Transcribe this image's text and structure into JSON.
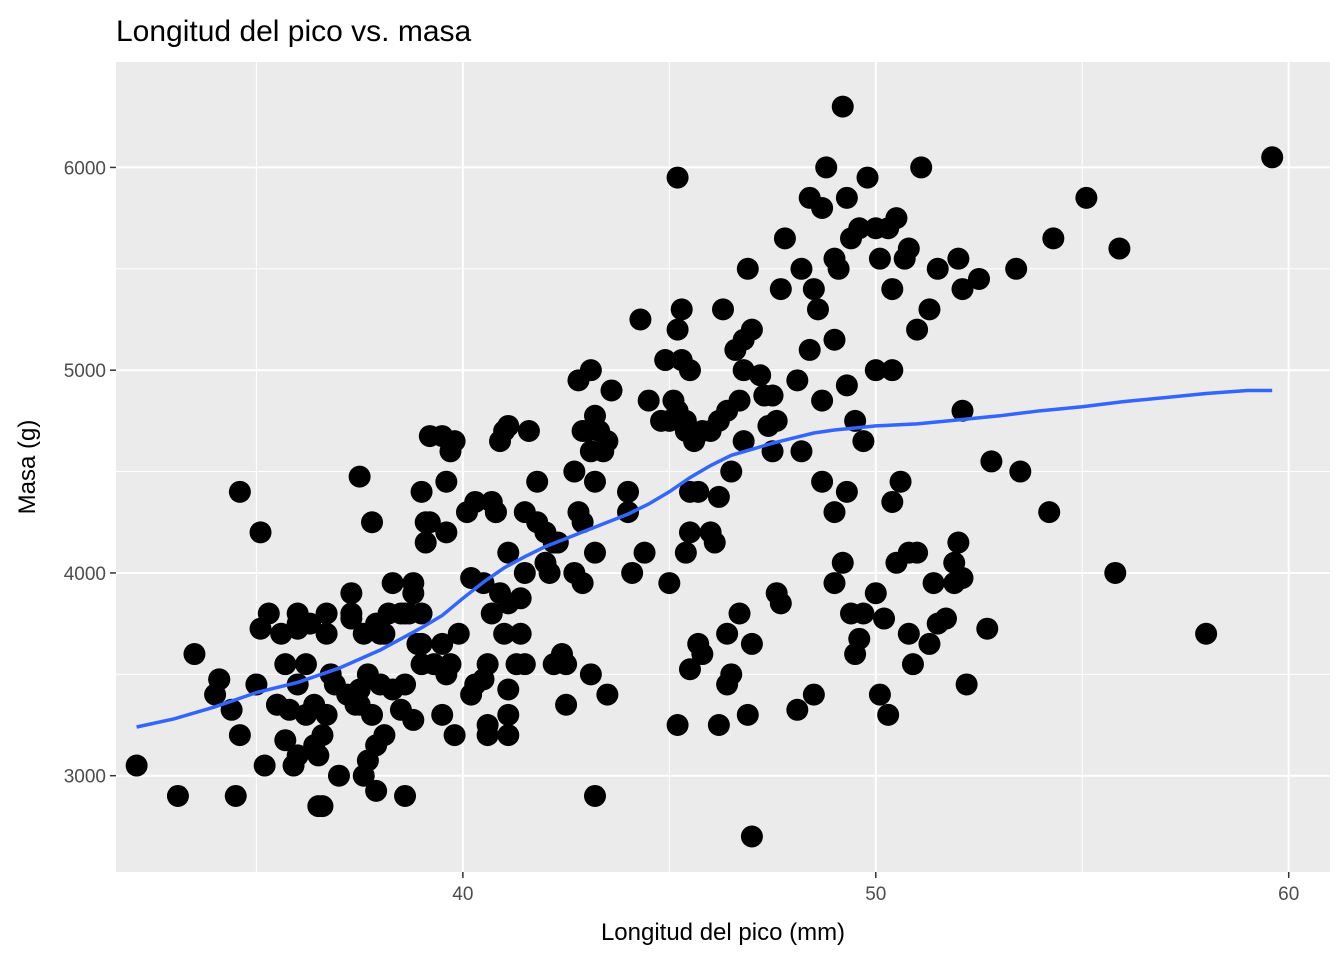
{
  "chart_data": {
    "type": "scatter",
    "title": "Longitud del pico vs. masa",
    "xlabel": "Longitud del pico (mm)",
    "ylabel": "Masa (g)",
    "xlim": [
      31.6,
      61.0
    ],
    "ylim": [
      2525,
      6520
    ],
    "x_ticks": [
      40,
      50,
      60
    ],
    "y_ticks": [
      3000,
      4000,
      5000,
      6000
    ],
    "x_minor": [
      35,
      45,
      55
    ],
    "y_minor": [
      3500,
      4500,
      5500
    ],
    "grid": true,
    "colors": {
      "panel": "#EBEBEB",
      "grid": "#FFFFFF",
      "point": "#000000",
      "smooth": "#3366FF",
      "tick": "#4D4D4D"
    },
    "points": [
      [
        32.1,
        3050
      ],
      [
        33.1,
        2900
      ],
      [
        33.5,
        3600
      ],
      [
        34.0,
        3400
      ],
      [
        34.1,
        3475
      ],
      [
        34.4,
        3325
      ],
      [
        34.5,
        2900
      ],
      [
        34.6,
        3200
      ],
      [
        34.6,
        4400
      ],
      [
        35.0,
        3450
      ],
      [
        35.1,
        3725
      ],
      [
        35.1,
        4200
      ],
      [
        35.2,
        3050
      ],
      [
        35.3,
        3800
      ],
      [
        35.5,
        3350
      ],
      [
        35.6,
        3700
      ],
      [
        35.7,
        3175
      ],
      [
        35.7,
        3550
      ],
      [
        35.8,
        3325
      ],
      [
        35.9,
        3050
      ],
      [
        36.0,
        3100
      ],
      [
        36.0,
        3725
      ],
      [
        36.0,
        3800
      ],
      [
        36.0,
        3450
      ],
      [
        36.2,
        3550
      ],
      [
        36.2,
        3300
      ],
      [
        36.3,
        3750
      ],
      [
        36.4,
        3150
      ],
      [
        36.4,
        3350
      ],
      [
        36.5,
        2850
      ],
      [
        36.6,
        2850
      ],
      [
        36.6,
        3200
      ],
      [
        36.7,
        3700
      ],
      [
        36.7,
        3800
      ],
      [
        36.8,
        3500
      ],
      [
        36.9,
        3450
      ],
      [
        37.0,
        3000
      ],
      [
        37.2,
        3400
      ],
      [
        37.3,
        3900
      ],
      [
        37.3,
        3775
      ],
      [
        37.5,
        3350
      ],
      [
        37.5,
        4475
      ],
      [
        37.6,
        3000
      ],
      [
        37.6,
        3700
      ],
      [
        37.7,
        3075
      ],
      [
        37.7,
        3500
      ],
      [
        37.8,
        3300
      ],
      [
        37.8,
        4250
      ],
      [
        37.9,
        3150
      ],
      [
        37.9,
        2925
      ],
      [
        38.0,
        3700
      ],
      [
        38.0,
        3450
      ],
      [
        38.1,
        3200
      ],
      [
        38.1,
        3700
      ],
      [
        38.2,
        3800
      ],
      [
        38.3,
        3950
      ],
      [
        38.3,
        3425
      ],
      [
        38.5,
        3325
      ],
      [
        38.6,
        3800
      ],
      [
        38.6,
        2900
      ],
      [
        38.6,
        3450
      ],
      [
        38.7,
        3800
      ],
      [
        38.8,
        3275
      ],
      [
        38.8,
        3950
      ],
      [
        39.0,
        3800
      ],
      [
        39.0,
        3550
      ],
      [
        39.0,
        3650
      ],
      [
        39.1,
        4150
      ],
      [
        39.1,
        4250
      ],
      [
        39.2,
        4675
      ],
      [
        39.3,
        3550
      ],
      [
        39.5,
        3300
      ],
      [
        39.5,
        3650
      ],
      [
        39.6,
        3500
      ],
      [
        39.6,
        4450
      ],
      [
        39.7,
        3550
      ],
      [
        39.7,
        4600
      ],
      [
        39.8,
        4650
      ],
      [
        39.8,
        3200
      ],
      [
        39.9,
        3700
      ],
      [
        40.1,
        4300
      ],
      [
        40.2,
        3975
      ],
      [
        40.2,
        3400
      ],
      [
        40.3,
        3450
      ],
      [
        40.3,
        4350
      ],
      [
        40.5,
        3475
      ],
      [
        40.6,
        3200
      ],
      [
        40.6,
        3550
      ],
      [
        40.7,
        3800
      ],
      [
        40.8,
        4300
      ],
      [
        40.9,
        3900
      ],
      [
        40.9,
        4650
      ],
      [
        41.0,
        3700
      ],
      [
        41.1,
        3200
      ],
      [
        41.1,
        3300
      ],
      [
        41.1,
        4100
      ],
      [
        41.1,
        3425
      ],
      [
        41.1,
        4725
      ],
      [
        41.3,
        3550
      ],
      [
        41.4,
        3700
      ],
      [
        41.4,
        3875
      ],
      [
        41.5,
        4000
      ],
      [
        41.6,
        4700
      ],
      [
        41.8,
        4450
      ],
      [
        42.0,
        4050
      ],
      [
        42.1,
        4000
      ],
      [
        42.2,
        3550
      ],
      [
        42.3,
        4150
      ],
      [
        42.5,
        3350
      ],
      [
        42.5,
        3550
      ],
      [
        42.7,
        4500
      ],
      [
        42.8,
        4950
      ],
      [
        42.9,
        4700
      ],
      [
        42.9,
        4250
      ],
      [
        43.1,
        5000
      ],
      [
        43.2,
        4775
      ],
      [
        43.2,
        4450
      ],
      [
        43.3,
        4700
      ],
      [
        43.4,
        4600
      ],
      [
        43.5,
        4650
      ],
      [
        43.5,
        3400
      ],
      [
        43.6,
        4900
      ],
      [
        44.0,
        4300
      ],
      [
        44.1,
        4000
      ],
      [
        44.4,
        4100
      ],
      [
        44.5,
        4850
      ],
      [
        44.9,
        5050
      ],
      [
        45.0,
        4750
      ],
      [
        45.2,
        4800
      ],
      [
        45.3,
        5050
      ],
      [
        45.4,
        4700
      ],
      [
        45.4,
        4750
      ],
      [
        45.5,
        5000
      ],
      [
        45.6,
        4650
      ],
      [
        45.7,
        4400
      ],
      [
        45.8,
        4700
      ],
      [
        46.1,
        4150
      ],
      [
        46.2,
        4375
      ],
      [
        46.2,
        4750
      ],
      [
        46.3,
        5300
      ],
      [
        46.4,
        4800
      ],
      [
        46.5,
        4500
      ],
      [
        46.6,
        5100
      ],
      [
        46.7,
        4850
      ],
      [
        46.8,
        4650
      ],
      [
        46.8,
        5150
      ],
      [
        46.9,
        5500
      ],
      [
        47.2,
        4975
      ],
      [
        47.3,
        4875
      ],
      [
        47.5,
        4875
      ],
      [
        47.8,
        5650
      ],
      [
        48.1,
        4950
      ],
      [
        48.2,
        5500
      ],
      [
        48.4,
        5850
      ],
      [
        48.5,
        5400
      ],
      [
        48.6,
        5300
      ],
      [
        48.7,
        5800
      ],
      [
        48.8,
        6000
      ],
      [
        49.0,
        5550
      ],
      [
        49.1,
        5500
      ],
      [
        49.2,
        6300
      ],
      [
        49.3,
        5850
      ],
      [
        49.4,
        5650
      ],
      [
        49.6,
        5700
      ],
      [
        49.8,
        5950
      ],
      [
        50.0,
        5700
      ],
      [
        50.1,
        5550
      ],
      [
        50.3,
        5700
      ],
      [
        50.5,
        5750
      ],
      [
        50.7,
        5550
      ],
      [
        50.8,
        5600
      ],
      [
        51.1,
        6000
      ],
      [
        51.3,
        5300
      ],
      [
        51.5,
        5500
      ],
      [
        52.0,
        5550
      ],
      [
        52.1,
        5400
      ],
      [
        52.5,
        5450
      ],
      [
        53.4,
        5500
      ],
      [
        54.3,
        5650
      ],
      [
        55.1,
        5850
      ],
      [
        55.9,
        5600
      ],
      [
        59.6,
        6050
      ],
      [
        45.2,
        5950
      ],
      [
        45.2,
        5200
      ],
      [
        47.0,
        5200
      ],
      [
        47.7,
        5400
      ],
      [
        48.4,
        5100
      ],
      [
        49.0,
        5150
      ],
      [
        49.5,
        4750
      ],
      [
        49.3,
        4925
      ],
      [
        50.0,
        5000
      ],
      [
        50.4,
        5000
      ],
      [
        51.0,
        5200
      ],
      [
        48.7,
        4850
      ],
      [
        46.8,
        5000
      ],
      [
        47.5,
        4600
      ],
      [
        48.2,
        4600
      ],
      [
        45.1,
        4850
      ],
      [
        44.3,
        5250
      ],
      [
        45.3,
        5300
      ],
      [
        46.0,
        4700
      ],
      [
        47.4,
        4725
      ],
      [
        50.4,
        5400
      ],
      [
        52.1,
        4800
      ],
      [
        52.8,
        4550
      ],
      [
        53.5,
        4500
      ],
      [
        54.2,
        4300
      ],
      [
        55.8,
        4000
      ],
      [
        58.0,
        3700
      ],
      [
        52.2,
        3450
      ],
      [
        52.7,
        3725
      ],
      [
        52.0,
        4150
      ],
      [
        51.9,
        3950
      ],
      [
        50.8,
        4100
      ],
      [
        50.5,
        4050
      ],
      [
        50.9,
        3550
      ],
      [
        50.8,
        3700
      ],
      [
        51.0,
        4100
      ],
      [
        50.2,
        3775
      ],
      [
        50.3,
        3300
      ],
      [
        50.1,
        3400
      ],
      [
        49.6,
        3675
      ],
      [
        49.5,
        3600
      ],
      [
        49.7,
        3800
      ],
      [
        49.2,
        4050
      ],
      [
        49.0,
        3950
      ],
      [
        48.7,
        4450
      ],
      [
        49.0,
        4300
      ],
      [
        49.3,
        4400
      ],
      [
        46.5,
        3500
      ],
      [
        46.4,
        3450
      ],
      [
        46.4,
        3700
      ],
      [
        46.7,
        3800
      ],
      [
        46.9,
        3300
      ],
      [
        47.0,
        3650
      ],
      [
        47.0,
        2700
      ],
      [
        47.6,
        3900
      ],
      [
        47.7,
        3850
      ],
      [
        48.1,
        3325
      ],
      [
        48.5,
        3400
      ],
      [
        46.2,
        3250
      ],
      [
        45.8,
        3600
      ],
      [
        45.7,
        3650
      ],
      [
        45.5,
        3525
      ],
      [
        45.2,
        3250
      ],
      [
        43.2,
        2900
      ],
      [
        43.1,
        3500
      ],
      [
        42.4,
        3600
      ],
      [
        42.9,
        3950
      ],
      [
        43.2,
        4100
      ],
      [
        45.0,
        3950
      ],
      [
        45.5,
        4200
      ],
      [
        46.0,
        4200
      ],
      [
        45.5,
        4400
      ],
      [
        47.6,
        4750
      ],
      [
        50.0,
        3900
      ],
      [
        50.4,
        4350
      ],
      [
        51.3,
        3650
      ],
      [
        51.4,
        3950
      ],
      [
        51.5,
        3750
      ],
      [
        51.9,
        4050
      ],
      [
        52.1,
        3975
      ],
      [
        49.4,
        3800
      ],
      [
        49.7,
        4650
      ],
      [
        50.6,
        4450
      ],
      [
        51.7,
        3775
      ],
      [
        36.0,
        3750
      ],
      [
        37.3,
        3800
      ],
      [
        39.5,
        4675
      ],
      [
        38.9,
        3650
      ],
      [
        36.5,
        3100
      ],
      [
        37.5,
        3425
      ],
      [
        38.5,
        3800
      ],
      [
        39.2,
        4250
      ],
      [
        40.5,
        3950
      ],
      [
        41.5,
        4300
      ],
      [
        42.8,
        4300
      ],
      [
        44.0,
        4400
      ],
      [
        41.8,
        4250
      ],
      [
        40.8,
        4300
      ],
      [
        38.8,
        3900
      ],
      [
        37.9,
        3750
      ],
      [
        35.5,
        3350
      ],
      [
        34.1,
        3475
      ],
      [
        36.7,
        3300
      ],
      [
        37.4,
        3350
      ],
      [
        41.5,
        3550
      ],
      [
        42.2,
        4150
      ],
      [
        39.6,
        4200
      ],
      [
        40.6,
        3250
      ],
      [
        39.0,
        4400
      ],
      [
        40.7,
        4350
      ],
      [
        41.0,
        4700
      ],
      [
        41.1,
        3850
      ],
      [
        42.0,
        4200
      ],
      [
        43.1,
        4600
      ],
      [
        44.8,
        4750
      ],
      [
        45.4,
        4100
      ],
      [
        42.7,
        4000
      ],
      [
        43.0,
        4700
      ]
    ],
    "smooth_line": [
      [
        32.1,
        3240
      ],
      [
        33.0,
        3280
      ],
      [
        34.0,
        3340
      ],
      [
        35.0,
        3410
      ],
      [
        36.0,
        3460
      ],
      [
        37.0,
        3530
      ],
      [
        38.0,
        3620
      ],
      [
        39.0,
        3730
      ],
      [
        39.5,
        3790
      ],
      [
        40.0,
        3875
      ],
      [
        40.5,
        3955
      ],
      [
        41.0,
        4025
      ],
      [
        41.5,
        4080
      ],
      [
        42.0,
        4130
      ],
      [
        42.5,
        4170
      ],
      [
        43.0,
        4210
      ],
      [
        43.5,
        4250
      ],
      [
        44.0,
        4290
      ],
      [
        44.5,
        4340
      ],
      [
        45.0,
        4400
      ],
      [
        45.5,
        4470
      ],
      [
        46.0,
        4530
      ],
      [
        46.5,
        4580
      ],
      [
        47.0,
        4610
      ],
      [
        47.5,
        4640
      ],
      [
        48.0,
        4665
      ],
      [
        48.5,
        4690
      ],
      [
        49.0,
        4705
      ],
      [
        49.5,
        4715
      ],
      [
        50.0,
        4725
      ],
      [
        51.0,
        4735
      ],
      [
        52.0,
        4755
      ],
      [
        53.0,
        4775
      ],
      [
        54.0,
        4800
      ],
      [
        55.0,
        4820
      ],
      [
        56.0,
        4845
      ],
      [
        57.0,
        4865
      ],
      [
        58.0,
        4885
      ],
      [
        59.0,
        4900
      ],
      [
        59.6,
        4900
      ]
    ]
  }
}
